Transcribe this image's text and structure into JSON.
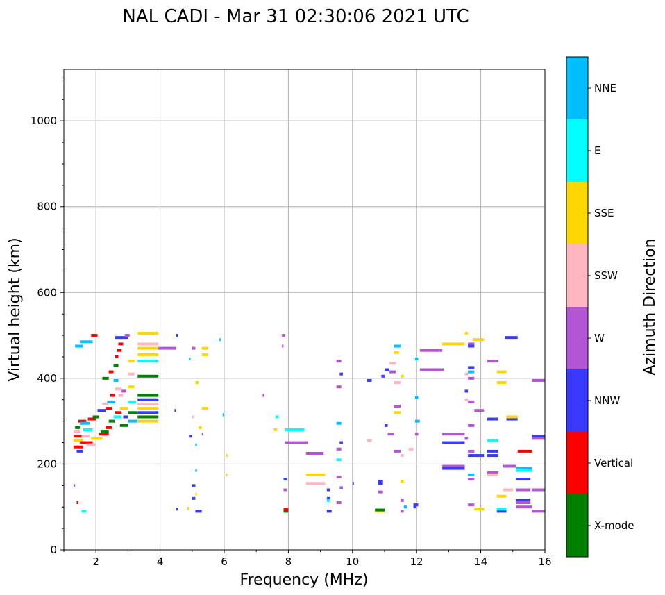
{
  "chart_data": {
    "type": "scatter",
    "title": "NAL CADI - Mar 31 02:30:06 2021 UTC",
    "xlabel": "Frequency (MHz)",
    "ylabel": "Virtual height (km)",
    "xlim": [
      1,
      16
    ],
    "ylim": [
      0,
      1120
    ],
    "xticks": [
      2,
      4,
      6,
      8,
      10,
      12,
      14,
      16
    ],
    "yticks": [
      0,
      200,
      400,
      600,
      800,
      1000
    ],
    "grid": true,
    "colorbar": {
      "title": "Azimuth Direction",
      "categories": [
        {
          "name": "X-mode",
          "color": "#008000"
        },
        {
          "name": "Vertical",
          "color": "#ff0000"
        },
        {
          "name": "NNW",
          "color": "#3a3aff"
        },
        {
          "name": "W",
          "color": "#b256d6"
        },
        {
          "name": "SSW",
          "color": "#ffb6c1"
        },
        {
          "name": "SSE",
          "color": "#ffd700"
        },
        {
          "name": "E",
          "color": "#00ffff"
        },
        {
          "name": "NNE",
          "color": "#00bfff"
        }
      ]
    },
    "echoes": [
      [
        1.3,
        240,
        1.6,
        "Vertical"
      ],
      [
        1.3,
        255,
        1.6,
        "SSE"
      ],
      [
        1.3,
        265,
        1.6,
        "Vertical"
      ],
      [
        1.3,
        275,
        1.5,
        "SSW"
      ],
      [
        1.35,
        285,
        1.5,
        "X-mode"
      ],
      [
        1.4,
        230,
        1.6,
        "NNW"
      ],
      [
        1.45,
        300,
        1.7,
        "Vertical"
      ],
      [
        1.5,
        295,
        1.8,
        "NNE"
      ],
      [
        1.5,
        250,
        1.9,
        "Vertical"
      ],
      [
        1.55,
        265,
        1.8,
        "SSW"
      ],
      [
        1.6,
        280,
        1.9,
        "E"
      ],
      [
        1.7,
        245,
        2.0,
        "SSW"
      ],
      [
        1.75,
        305,
        2.0,
        "Vertical"
      ],
      [
        1.9,
        310,
        2.1,
        "X-mode"
      ],
      [
        2.0,
        260,
        2.2,
        "SSE"
      ],
      [
        2.05,
        325,
        2.3,
        "NNW"
      ],
      [
        2.1,
        270,
        2.4,
        "Vertical"
      ],
      [
        2.2,
        340,
        2.4,
        "SSW"
      ],
      [
        2.3,
        285,
        2.5,
        "Vertical"
      ],
      [
        2.35,
        345,
        2.6,
        "NNE"
      ],
      [
        2.4,
        300,
        2.6,
        "X-mode"
      ],
      [
        2.45,
        360,
        2.6,
        "Vertical"
      ],
      [
        2.55,
        310,
        2.8,
        "E"
      ],
      [
        2.6,
        320,
        2.8,
        "Vertical"
      ],
      [
        2.6,
        375,
        2.8,
        "SSW"
      ],
      [
        2.75,
        290,
        3.0,
        "X-mode"
      ],
      [
        2.75,
        330,
        3.0,
        "SSE"
      ],
      [
        2.8,
        370,
        2.95,
        "W"
      ],
      [
        2.85,
        310,
        3.0,
        "NNW"
      ],
      [
        3.0,
        300,
        3.3,
        "NNE"
      ],
      [
        3.0,
        320,
        3.3,
        "X-mode"
      ],
      [
        3.0,
        345,
        3.25,
        "E"
      ],
      [
        3.0,
        380,
        3.2,
        "SSE"
      ],
      [
        3.0,
        410,
        3.2,
        "SSW"
      ],
      [
        3.0,
        440,
        3.2,
        "SSE"
      ],
      [
        3.3,
        300,
        3.95,
        "SSE"
      ],
      [
        3.3,
        310,
        3.95,
        "X-mode"
      ],
      [
        3.3,
        320,
        3.95,
        "NNW"
      ],
      [
        3.3,
        330,
        3.95,
        "SSE"
      ],
      [
        3.3,
        340,
        3.95,
        "SSW"
      ],
      [
        3.3,
        350,
        3.95,
        "NNW"
      ],
      [
        3.3,
        360,
        3.95,
        "X-mode"
      ],
      [
        3.3,
        405,
        3.95,
        "X-mode"
      ],
      [
        3.3,
        440,
        3.95,
        "E"
      ],
      [
        3.3,
        455,
        3.95,
        "SSE"
      ],
      [
        3.3,
        470,
        3.95,
        "SSE"
      ],
      [
        3.3,
        480,
        3.95,
        "SSW"
      ],
      [
        3.3,
        505,
        3.95,
        "SSE"
      ],
      [
        2.6,
        495,
        3.0,
        "NNW"
      ],
      [
        1.5,
        485,
        1.9,
        "NNE"
      ],
      [
        1.85,
        500,
        2.05,
        "Vertical"
      ],
      [
        1.35,
        475,
        1.6,
        "NNE"
      ],
      [
        2.9,
        500,
        3.05,
        "W"
      ],
      [
        3.95,
        470,
        4.5,
        "W"
      ],
      [
        4.5,
        500,
        4.55,
        "NNW"
      ],
      [
        5.0,
        470,
        5.1,
        "W"
      ],
      [
        5.3,
        470,
        5.5,
        "SSE"
      ],
      [
        5.3,
        455,
        5.5,
        "SSE"
      ],
      [
        5.3,
        330,
        5.5,
        "SSE"
      ],
      [
        5.1,
        390,
        5.2,
        "SSE"
      ],
      [
        4.45,
        325,
        4.5,
        "NNW"
      ],
      [
        5.85,
        490,
        5.9,
        "NNE"
      ],
      [
        5.95,
        315,
        6.0,
        "NNE"
      ],
      [
        4.9,
        445,
        4.95,
        "NNE"
      ],
      [
        5.0,
        310,
        5.05,
        "SSW"
      ],
      [
        5.1,
        245,
        5.15,
        "NNE"
      ],
      [
        5.2,
        285,
        5.3,
        "SSE"
      ],
      [
        5.3,
        270,
        5.35,
        "W"
      ],
      [
        4.9,
        265,
        5.0,
        "NNW"
      ],
      [
        5.0,
        150,
        5.1,
        "NNW"
      ],
      [
        5.1,
        130,
        5.15,
        "SSE"
      ],
      [
        5.0,
        120,
        5.1,
        "NNW"
      ],
      [
        5.1,
        90,
        5.3,
        "NNW"
      ],
      [
        4.5,
        95,
        4.55,
        "NNW"
      ],
      [
        5.1,
        185,
        5.15,
        "NNE"
      ],
      [
        4.85,
        97,
        4.9,
        "SSE"
      ],
      [
        6.05,
        220,
        6.1,
        "SSE"
      ],
      [
        6.05,
        175,
        6.1,
        "SSE"
      ],
      [
        7.2,
        360,
        7.25,
        "W"
      ],
      [
        7.6,
        310,
        7.7,
        "E"
      ],
      [
        7.55,
        280,
        7.65,
        "SSE"
      ],
      [
        7.8,
        500,
        7.9,
        "W"
      ],
      [
        7.8,
        475,
        7.85,
        "W"
      ],
      [
        7.9,
        280,
        8.5,
        "E"
      ],
      [
        7.9,
        250,
        8.6,
        "W"
      ],
      [
        8.55,
        225,
        9.1,
        "W"
      ],
      [
        8.55,
        175,
        9.15,
        "SSE"
      ],
      [
        8.55,
        155,
        9.15,
        "SSW"
      ],
      [
        7.85,
        165,
        7.95,
        "NNW"
      ],
      [
        7.85,
        140,
        7.95,
        "W"
      ],
      [
        7.85,
        90,
        8.0,
        "X-mode"
      ],
      [
        7.85,
        95,
        8.0,
        "Vertical"
      ],
      [
        9.2,
        140,
        9.3,
        "NNW"
      ],
      [
        9.2,
        120,
        9.3,
        "NNW"
      ],
      [
        9.2,
        115,
        9.3,
        "E"
      ],
      [
        9.2,
        90,
        9.35,
        "NNW"
      ],
      [
        9.5,
        440,
        9.65,
        "W"
      ],
      [
        9.6,
        410,
        9.7,
        "NNW"
      ],
      [
        9.5,
        380,
        9.65,
        "W"
      ],
      [
        9.5,
        295,
        9.65,
        "NNE"
      ],
      [
        9.6,
        250,
        9.7,
        "NNW"
      ],
      [
        9.5,
        235,
        9.65,
        "W"
      ],
      [
        9.5,
        210,
        9.65,
        "E"
      ],
      [
        9.5,
        170,
        9.65,
        "W"
      ],
      [
        9.6,
        145,
        9.7,
        "W"
      ],
      [
        9.5,
        110,
        9.65,
        "W"
      ],
      [
        10.45,
        255,
        10.6,
        "SSW"
      ],
      [
        10.0,
        155,
        10.0,
        "NNW"
      ],
      [
        10.45,
        395,
        10.6,
        "NNW"
      ],
      [
        10.7,
        90,
        11.0,
        "SSE"
      ],
      [
        10.7,
        93,
        11.0,
        "X-mode"
      ],
      [
        10.8,
        160,
        10.95,
        "NNW"
      ],
      [
        10.8,
        155,
        10.95,
        "NNW"
      ],
      [
        10.8,
        135,
        10.95,
        "W"
      ],
      [
        10.9,
        405,
        11.0,
        "NNW"
      ],
      [
        11.0,
        290,
        11.1,
        "NNW"
      ],
      [
        11.0,
        420,
        11.15,
        "NNW"
      ],
      [
        11.15,
        435,
        11.35,
        "SSW"
      ],
      [
        11.15,
        415,
        11.35,
        "W"
      ],
      [
        11.3,
        475,
        11.5,
        "NNE"
      ],
      [
        11.3,
        460,
        11.45,
        "SSE"
      ],
      [
        11.3,
        390,
        11.5,
        "SSW"
      ],
      [
        11.3,
        335,
        11.5,
        "W"
      ],
      [
        11.3,
        320,
        11.5,
        "SSE"
      ],
      [
        11.1,
        270,
        11.3,
        "W"
      ],
      [
        11.3,
        230,
        11.5,
        "W"
      ],
      [
        11.5,
        405,
        11.6,
        "SSE"
      ],
      [
        11.5,
        220,
        11.6,
        "SSW"
      ],
      [
        11.5,
        160,
        11.6,
        "SSE"
      ],
      [
        11.5,
        115,
        11.6,
        "W"
      ],
      [
        11.5,
        90,
        11.6,
        "W"
      ],
      [
        11.6,
        100,
        11.7,
        "NNE"
      ],
      [
        11.75,
        235,
        11.9,
        "SSW"
      ],
      [
        11.9,
        100,
        12.0,
        "NNW"
      ],
      [
        11.9,
        105,
        12.05,
        "NNW"
      ],
      [
        11.95,
        445,
        12.05,
        "NNE"
      ],
      [
        11.95,
        355,
        12.05,
        "NNE"
      ],
      [
        11.95,
        300,
        12.1,
        "NNE"
      ],
      [
        11.95,
        270,
        12.05,
        "W"
      ],
      [
        12.1,
        465,
        12.8,
        "W"
      ],
      [
        12.1,
        420,
        12.85,
        "W"
      ],
      [
        12.8,
        480,
        13.5,
        "SSE"
      ],
      [
        13.5,
        505,
        13.6,
        "SSE"
      ],
      [
        12.8,
        270,
        13.5,
        "W"
      ],
      [
        12.8,
        250,
        13.5,
        "NNW"
      ],
      [
        12.8,
        195,
        13.5,
        "W"
      ],
      [
        12.8,
        190,
        13.5,
        "NNW"
      ],
      [
        13.5,
        410,
        13.6,
        "SSW"
      ],
      [
        13.5,
        370,
        13.6,
        "NNW"
      ],
      [
        13.5,
        350,
        13.6,
        "SSW"
      ],
      [
        13.5,
        260,
        13.6,
        "W"
      ],
      [
        13.6,
        480,
        13.8,
        "W"
      ],
      [
        13.6,
        475,
        13.8,
        "NNW"
      ],
      [
        13.6,
        425,
        13.8,
        "NNW"
      ],
      [
        13.6,
        415,
        13.8,
        "NNE"
      ],
      [
        13.6,
        400,
        13.8,
        "W"
      ],
      [
        13.6,
        345,
        13.8,
        "W"
      ],
      [
        13.6,
        290,
        13.8,
        "W"
      ],
      [
        13.6,
        230,
        13.8,
        "W"
      ],
      [
        13.6,
        220,
        13.8,
        "NNW"
      ],
      [
        13.6,
        175,
        13.8,
        "NNE"
      ],
      [
        13.6,
        165,
        13.8,
        "W"
      ],
      [
        13.6,
        105,
        13.8,
        "W"
      ],
      [
        13.75,
        490,
        14.1,
        "SSE"
      ],
      [
        13.8,
        325,
        14.1,
        "W"
      ],
      [
        13.8,
        220,
        14.1,
        "NNW"
      ],
      [
        13.8,
        95,
        14.1,
        "SSE"
      ],
      [
        14.2,
        440,
        14.55,
        "W"
      ],
      [
        14.2,
        305,
        14.55,
        "NNW"
      ],
      [
        14.2,
        255,
        14.55,
        "E"
      ],
      [
        14.2,
        230,
        14.55,
        "NNW"
      ],
      [
        14.2,
        220,
        14.55,
        "NNW"
      ],
      [
        14.2,
        180,
        14.55,
        "W"
      ],
      [
        14.2,
        175,
        14.55,
        "SSW"
      ],
      [
        14.5,
        415,
        14.8,
        "SSE"
      ],
      [
        14.5,
        390,
        14.8,
        "SSE"
      ],
      [
        14.5,
        125,
        14.8,
        "SSE"
      ],
      [
        14.5,
        90,
        14.8,
        "NNW"
      ],
      [
        14.5,
        95,
        14.8,
        "E"
      ],
      [
        14.8,
        305,
        15.15,
        "NNW"
      ],
      [
        14.8,
        310,
        15.15,
        "SSE"
      ],
      [
        14.7,
        195,
        15.1,
        "W"
      ],
      [
        14.7,
        140,
        15.0,
        "SSW"
      ],
      [
        14.75,
        495,
        15.15,
        "NNW"
      ],
      [
        15.15,
        230,
        15.6,
        "Vertical"
      ],
      [
        15.1,
        190,
        15.6,
        "NNE"
      ],
      [
        15.1,
        185,
        15.6,
        "E"
      ],
      [
        15.1,
        165,
        15.55,
        "NNW"
      ],
      [
        15.1,
        140,
        15.55,
        "W"
      ],
      [
        15.1,
        115,
        15.55,
        "NNW"
      ],
      [
        15.1,
        110,
        15.55,
        "W"
      ],
      [
        15.1,
        100,
        15.6,
        "W"
      ],
      [
        15.6,
        395,
        16.0,
        "W"
      ],
      [
        15.6,
        265,
        16.0,
        "NNW"
      ],
      [
        15.6,
        260,
        16.0,
        "W"
      ],
      [
        15.6,
        140,
        16.0,
        "W"
      ],
      [
        15.6,
        90,
        16.0,
        "W"
      ],
      [
        1.3,
        150,
        1.35,
        "W"
      ],
      [
        1.4,
        110,
        1.45,
        "Vertical"
      ],
      [
        1.55,
        90,
        1.7,
        "E"
      ],
      [
        2.2,
        400,
        2.4,
        "X-mode"
      ],
      [
        2.4,
        415,
        2.55,
        "Vertical"
      ],
      [
        2.55,
        430,
        2.7,
        "X-mode"
      ],
      [
        2.6,
        450,
        2.7,
        "Vertical"
      ],
      [
        2.65,
        465,
        2.8,
        "Vertical"
      ],
      [
        2.7,
        480,
        2.85,
        "Vertical"
      ],
      [
        2.55,
        395,
        2.7,
        "NNE"
      ],
      [
        2.7,
        360,
        2.85,
        "SSW"
      ],
      [
        2.15,
        275,
        2.4,
        "X-mode"
      ],
      [
        2.3,
        330,
        2.5,
        "Vertical"
      ],
      [
        1.85,
        260,
        2.05,
        "SSE"
      ]
    ]
  }
}
